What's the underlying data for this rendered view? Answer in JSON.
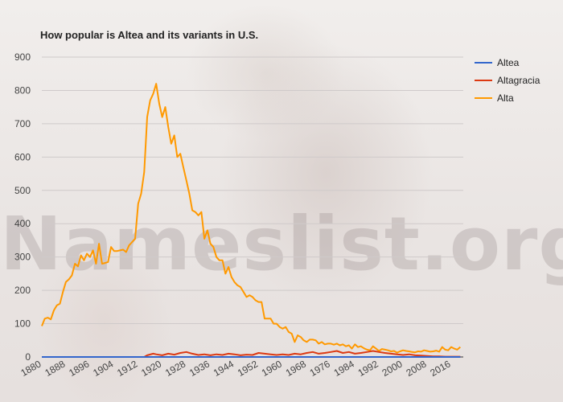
{
  "chart_data": {
    "type": "line",
    "title": "How popular is Altea and its variants in U.S.",
    "watermark": "Nameslist.org",
    "xlim": [
      1880,
      2020
    ],
    "ylim": [
      0,
      900
    ],
    "yticks": [
      0,
      100,
      200,
      300,
      400,
      500,
      600,
      700,
      800,
      900
    ],
    "xticks": [
      1880,
      1888,
      1896,
      1904,
      1912,
      1920,
      1928,
      1936,
      1944,
      1952,
      1960,
      1968,
      1976,
      1984,
      1992,
      2000,
      2008,
      2016
    ],
    "grid": true,
    "legend_position": "top-right",
    "series": [
      {
        "name": "Altea",
        "color": "#3366cc",
        "x": [
          1880,
          2019
        ],
        "y": [
          0,
          0
        ]
      },
      {
        "name": "Altagracia",
        "color": "#dc3912",
        "x": [
          1880,
          1914,
          1915,
          1917,
          1918,
          1920,
          1922,
          1924,
          1926,
          1928,
          1930,
          1932,
          1934,
          1936,
          1938,
          1940,
          1942,
          1944,
          1946,
          1948,
          1950,
          1952,
          1954,
          1956,
          1958,
          1960,
          1962,
          1964,
          1966,
          1968,
          1970,
          1972,
          1974,
          1976,
          1978,
          1980,
          1982,
          1984,
          1986,
          1988,
          1990,
          1992,
          1994,
          1996,
          1998,
          2000,
          2002,
          2004,
          2006,
          2008,
          2010,
          2012,
          2014,
          2016,
          2019
        ],
        "y": [
          0,
          0,
          5,
          10,
          8,
          5,
          10,
          7,
          12,
          15,
          10,
          6,
          8,
          5,
          8,
          6,
          10,
          8,
          5,
          7,
          6,
          12,
          10,
          8,
          6,
          8,
          6,
          10,
          8,
          12,
          15,
          10,
          12,
          15,
          18,
          12,
          15,
          10,
          12,
          15,
          18,
          15,
          12,
          10,
          8,
          6,
          8,
          5,
          4,
          3,
          2,
          2,
          1,
          1,
          1
        ]
      },
      {
        "name": "Alta",
        "color": "#ff9900",
        "x": [
          1880,
          1881,
          1882,
          1883,
          1884,
          1885,
          1886,
          1887,
          1888,
          1889,
          1890,
          1891,
          1892,
          1893,
          1894,
          1895,
          1896,
          1897,
          1898,
          1899,
          1900,
          1901,
          1902,
          1903,
          1904,
          1905,
          1906,
          1907,
          1908,
          1909,
          1910,
          1911,
          1912,
          1913,
          1914,
          1915,
          1916,
          1917,
          1918,
          1919,
          1920,
          1921,
          1922,
          1923,
          1924,
          1925,
          1926,
          1927,
          1928,
          1929,
          1930,
          1931,
          1932,
          1933,
          1934,
          1935,
          1936,
          1937,
          1938,
          1939,
          1940,
          1941,
          1942,
          1943,
          1944,
          1945,
          1946,
          1947,
          1948,
          1949,
          1950,
          1951,
          1952,
          1953,
          1954,
          1955,
          1956,
          1957,
          1958,
          1959,
          1960,
          1961,
          1962,
          1963,
          1964,
          1965,
          1966,
          1967,
          1968,
          1969,
          1970,
          1971,
          1972,
          1973,
          1974,
          1975,
          1976,
          1977,
          1978,
          1979,
          1980,
          1981,
          1982,
          1983,
          1984,
          1985,
          1986,
          1987,
          1988,
          1989,
          1990,
          1991,
          1992,
          1993,
          1994,
          1995,
          1996,
          1997,
          1998,
          1999,
          2000,
          2001,
          2002,
          2003,
          2004,
          2005,
          2006,
          2007,
          2008,
          2009,
          2010,
          2011,
          2012,
          2013,
          2014,
          2015,
          2016,
          2017,
          2018,
          2019
        ],
        "y": [
          93,
          115,
          118,
          113,
          140,
          155,
          160,
          195,
          225,
          233,
          245,
          280,
          272,
          305,
          290,
          310,
          300,
          320,
          280,
          340,
          280,
          282,
          285,
          330,
          318,
          318,
          320,
          322,
          315,
          335,
          345,
          355,
          460,
          490,
          555,
          720,
          770,
          790,
          820,
          760,
          720,
          750,
          690,
          640,
          665,
          600,
          610,
          570,
          530,
          490,
          440,
          435,
          425,
          435,
          355,
          380,
          340,
          330,
          300,
          290,
          290,
          250,
          270,
          240,
          225,
          215,
          210,
          195,
          180,
          185,
          180,
          170,
          165,
          165,
          115,
          115,
          115,
          100,
          100,
          90,
          85,
          90,
          75,
          70,
          45,
          65,
          60,
          50,
          45,
          52,
          52,
          50,
          40,
          45,
          38,
          40,
          40,
          37,
          40,
          35,
          38,
          32,
          35,
          25,
          38,
          30,
          32,
          26,
          22,
          20,
          32,
          25,
          18,
          24,
          22,
          20,
          17,
          18,
          13,
          17,
          20,
          18,
          17,
          15,
          14,
          17,
          16,
          20,
          18,
          16,
          17,
          19,
          16,
          30,
          22,
          20,
          30,
          25,
          22,
          30
        ]
      }
    ]
  }
}
